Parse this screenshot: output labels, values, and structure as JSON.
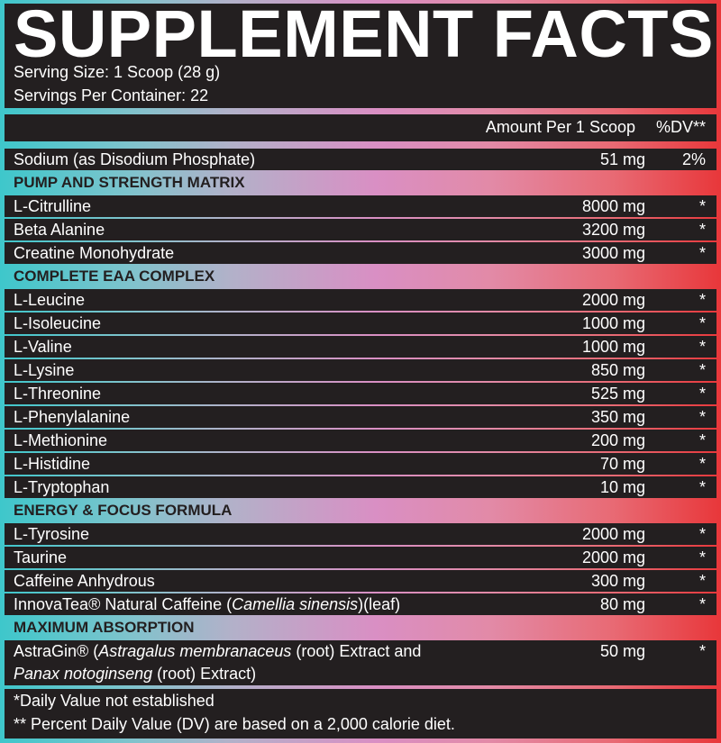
{
  "title": "SUPPLEMENT FACTS",
  "serving_size": "Serving Size: 1 Scoop (28 g)",
  "servings_per_container": "Servings Per Container: 22",
  "header": {
    "amount": "Amount Per 1 Scoop",
    "dv": "%DV**"
  },
  "colors": {
    "panel": "#231f20",
    "gradient_left": "#3ec7cb",
    "gradient_mid": "#d98fc4",
    "gradient_right": "#e8373a"
  },
  "rows": [
    {
      "type": "item",
      "name": [
        {
          "text": "Sodium (as Disodium Phosphate)"
        }
      ],
      "amount": "51 mg",
      "dv": "2%"
    },
    {
      "type": "section",
      "name": "PUMP AND STRENGTH MATRIX"
    },
    {
      "type": "item",
      "name": [
        {
          "text": "L-Citrulline"
        }
      ],
      "amount": "8000 mg",
      "dv": "*"
    },
    {
      "type": "item",
      "name": [
        {
          "text": "Beta Alanine"
        }
      ],
      "amount": "3200 mg",
      "dv": "*"
    },
    {
      "type": "item",
      "name": [
        {
          "text": "Creatine Monohydrate"
        }
      ],
      "amount": "3000 mg",
      "dv": "*"
    },
    {
      "type": "section",
      "name": "COMPLETE EAA COMPLEX"
    },
    {
      "type": "item",
      "name": [
        {
          "text": "L-Leucine"
        }
      ],
      "amount": "2000 mg",
      "dv": "*"
    },
    {
      "type": "item",
      "name": [
        {
          "text": "L-Isoleucine"
        }
      ],
      "amount": "1000 mg",
      "dv": "*"
    },
    {
      "type": "item",
      "name": [
        {
          "text": "L-Valine"
        }
      ],
      "amount": "1000 mg",
      "dv": "*"
    },
    {
      "type": "item",
      "name": [
        {
          "text": "L-Lysine"
        }
      ],
      "amount": "850 mg",
      "dv": "*"
    },
    {
      "type": "item",
      "name": [
        {
          "text": "L-Threonine"
        }
      ],
      "amount": "525 mg",
      "dv": "*"
    },
    {
      "type": "item",
      "name": [
        {
          "text": "L-Phenylalanine"
        }
      ],
      "amount": "350 mg",
      "dv": "*"
    },
    {
      "type": "item",
      "name": [
        {
          "text": "L-Methionine"
        }
      ],
      "amount": "200 mg",
      "dv": "*"
    },
    {
      "type": "item",
      "name": [
        {
          "text": "L-Histidine"
        }
      ],
      "amount": "70 mg",
      "dv": "*"
    },
    {
      "type": "item",
      "name": [
        {
          "text": "L-Tryptophan"
        }
      ],
      "amount": "10 mg",
      "dv": "*"
    },
    {
      "type": "section",
      "name": "ENERGY & FOCUS FORMULA"
    },
    {
      "type": "item",
      "name": [
        {
          "text": "L-Tyrosine"
        }
      ],
      "amount": "2000 mg",
      "dv": "*"
    },
    {
      "type": "item",
      "name": [
        {
          "text": "Taurine"
        }
      ],
      "amount": "2000 mg",
      "dv": "*"
    },
    {
      "type": "item",
      "name": [
        {
          "text": "Caffeine Anhydrous"
        }
      ],
      "amount": "300 mg",
      "dv": "*"
    },
    {
      "type": "item",
      "name": [
        {
          "text": "InnovaTea® Natural Caffeine ("
        },
        {
          "text": "Camellia sinensis",
          "italic": true
        },
        {
          "text": ")(leaf)"
        }
      ],
      "amount": "80 mg",
      "dv": "*"
    },
    {
      "type": "section",
      "name": "MAXIMUM ABSORPTION"
    },
    {
      "type": "item",
      "tall": true,
      "name": [
        {
          "text": "AstraGin® ("
        },
        {
          "text": "Astragalus membranaceus",
          "italic": true
        },
        {
          "text": " (root) Extract and"
        },
        {
          "br": true
        },
        {
          "text": "Panax notoginseng",
          "italic": true
        },
        {
          "text": " (root) Extract)"
        }
      ],
      "amount": "50 mg",
      "dv": "*"
    }
  ],
  "footnotes": [
    "*Daily Value not established",
    "** Percent Daily Value (DV) are based on a 2,000 calorie diet."
  ]
}
